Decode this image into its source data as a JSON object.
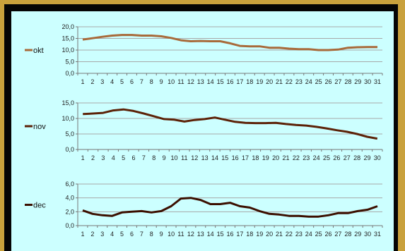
{
  "chart_data": [
    {
      "type": "line",
      "series": [
        {
          "name": "okt",
          "color": "#a86a3a",
          "values": [
            14.5,
            15.1,
            15.7,
            16.2,
            16.5,
            16.5,
            16.2,
            16.2,
            15.9,
            15.2,
            14.2,
            13.8,
            13.9,
            13.8,
            13.8,
            12.9,
            11.8,
            11.6,
            11.6,
            11.0,
            11.0,
            10.6,
            10.4,
            10.4,
            10.0,
            10.0,
            10.2,
            11.0,
            11.2,
            11.3,
            11.3
          ]
        }
      ],
      "categories": [
        "1",
        "2",
        "3",
        "4",
        "5",
        "6",
        "7",
        "8",
        "9",
        "10",
        "11",
        "12",
        "13",
        "14",
        "15",
        "16",
        "17",
        "18",
        "19",
        "20",
        "21",
        "22",
        "23",
        "24",
        "25",
        "26",
        "27",
        "28",
        "29",
        "30",
        "31"
      ],
      "ylim": [
        0,
        20
      ],
      "yticks": [
        "0,0",
        "5,0",
        "10,0",
        "15,0",
        "20,0"
      ],
      "grid": true,
      "legend": "left"
    },
    {
      "type": "line",
      "series": [
        {
          "name": "nov",
          "color": "#5c2208",
          "values": [
            11.4,
            11.6,
            11.8,
            12.6,
            12.9,
            12.4,
            11.6,
            10.7,
            9.8,
            9.6,
            9.0,
            9.5,
            9.8,
            10.3,
            9.6,
            8.9,
            8.6,
            8.5,
            8.5,
            8.6,
            8.2,
            7.9,
            7.7,
            7.3,
            6.8,
            6.2,
            5.7,
            5.0,
            4.1,
            3.5
          ]
        }
      ],
      "categories": [
        "1",
        "2",
        "3",
        "4",
        "5",
        "6",
        "7",
        "8",
        "9",
        "10",
        "11",
        "12",
        "13",
        "14",
        "15",
        "16",
        "17",
        "18",
        "19",
        "20",
        "21",
        "22",
        "23",
        "24",
        "25",
        "26",
        "27",
        "28",
        "29",
        "30"
      ],
      "ylim": [
        0,
        15
      ],
      "yticks": [
        "0,0",
        "5,0",
        "10,0",
        "15,0"
      ],
      "grid": true,
      "legend": "left"
    },
    {
      "type": "line",
      "series": [
        {
          "name": "dec",
          "color": "#3b0f00",
          "values": [
            2.2,
            1.7,
            1.5,
            1.4,
            1.9,
            2.0,
            2.1,
            1.9,
            2.1,
            2.8,
            3.9,
            4.0,
            3.7,
            3.1,
            3.1,
            3.3,
            2.8,
            2.6,
            2.1,
            1.7,
            1.6,
            1.4,
            1.4,
            1.3,
            1.3,
            1.5,
            1.8,
            1.8,
            2.1,
            2.3,
            2.8
          ]
        }
      ],
      "categories": [
        "1",
        "2",
        "3",
        "4",
        "5",
        "6",
        "7",
        "8",
        "9",
        "10",
        "11",
        "12",
        "13",
        "14",
        "15",
        "16",
        "17",
        "18",
        "19",
        "20",
        "21",
        "22",
        "23",
        "24",
        "25",
        "26",
        "27",
        "28",
        "29",
        "30",
        "31"
      ],
      "ylim": [
        0,
        6
      ],
      "yticks": [
        "0,0",
        "2,0",
        "4,0",
        "6,0"
      ],
      "grid": true,
      "legend": "left"
    }
  ]
}
